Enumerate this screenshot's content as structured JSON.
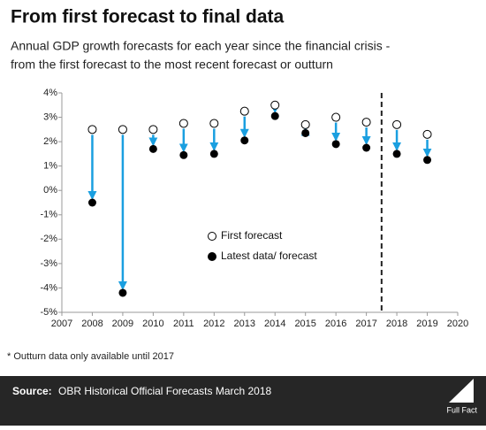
{
  "chart_data": {
    "type": "dumbbell",
    "title": "From first forecast to final data",
    "subtitle": [
      "Annual GDP growth forecasts for each year since the financial crisis -",
      "from the first forecast to the most recent forecast or outturn"
    ],
    "x": [
      2008,
      2009,
      2010,
      2011,
      2012,
      2013,
      2014,
      2015,
      2016,
      2017,
      2018,
      2019
    ],
    "series": [
      {
        "name": "First forecast",
        "color": "#ffffff",
        "values": [
          2.5,
          2.5,
          2.5,
          2.75,
          2.75,
          3.25,
          3.5,
          2.7,
          3.0,
          2.8,
          2.7,
          2.3
        ]
      },
      {
        "name": "Latest data/ forecast",
        "color": "#000000",
        "values": [
          -0.5,
          -4.2,
          1.7,
          1.45,
          1.5,
          2.05,
          3.05,
          2.35,
          1.9,
          1.75,
          1.5,
          1.25
        ]
      }
    ],
    "arrow_color": "#1a9fe0",
    "xlim": [
      2007,
      2020
    ],
    "xticks": [
      2007,
      2008,
      2009,
      2010,
      2011,
      2012,
      2013,
      2014,
      2015,
      2016,
      2017,
      2018,
      2019,
      2020
    ],
    "ylim": [
      -5,
      4
    ],
    "yticks": [
      {
        "value": -5,
        "label": "-5%"
      },
      {
        "value": -4,
        "label": "-4%"
      },
      {
        "value": -3,
        "label": "-3%"
      },
      {
        "value": -2,
        "label": "-2%"
      },
      {
        "value": -1,
        "label": "-1%"
      },
      {
        "value": 0,
        "label": "0%"
      },
      {
        "value": 1,
        "label": "1%"
      },
      {
        "value": 2,
        "label": "2%"
      },
      {
        "value": 3,
        "label": "3%"
      },
      {
        "value": 4,
        "label": "4%"
      }
    ],
    "divider_x": 2017.5,
    "grid": false,
    "footnote": "* Outturn data only available until 2017",
    "source_label": "Source:",
    "source": "OBR Historical Official Forecasts March 2018",
    "logo": "Full Fact"
  }
}
